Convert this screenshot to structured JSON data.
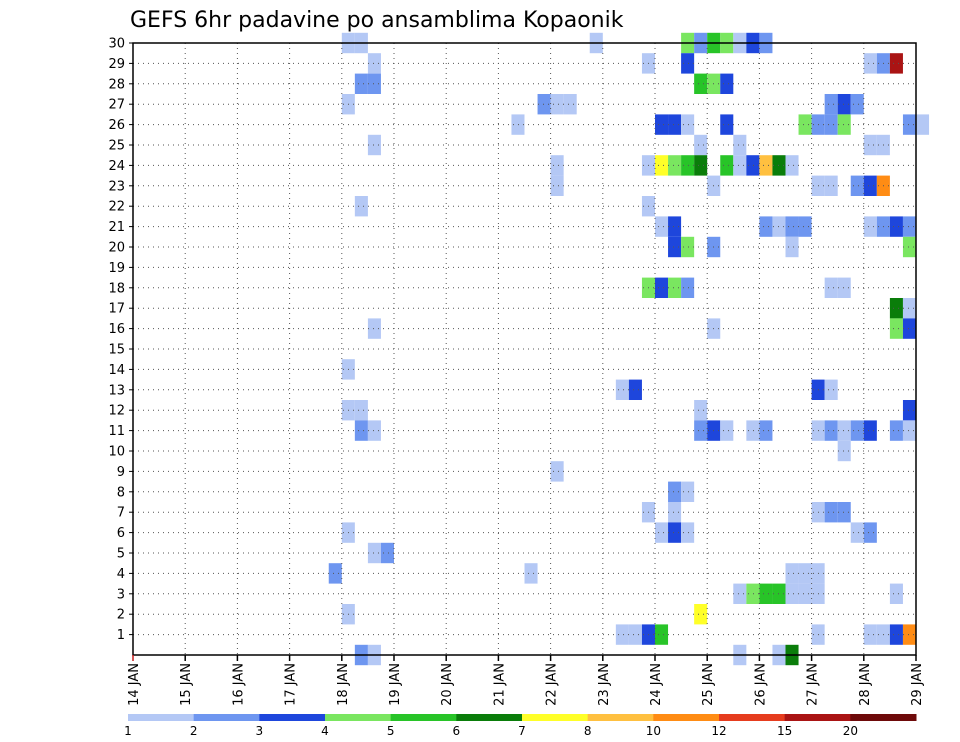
{
  "chart_data": {
    "type": "heatmap",
    "title": "GEFS 6hr padavine po ansamblima Kopaonik",
    "xlabel": "",
    "ylabel": "",
    "x_tick_labels": [
      "14 JAN",
      "15 JAN",
      "16 JAN",
      "17 JAN",
      "18 JAN",
      "19 JAN",
      "20 JAN",
      "21 JAN",
      "22 JAN",
      "23 JAN",
      "24 JAN",
      "25 JAN",
      "26 JAN",
      "27 JAN",
      "28 JAN",
      "29 JAN"
    ],
    "y_tick_labels": [
      "1",
      "2",
      "3",
      "4",
      "5",
      "6",
      "7",
      "8",
      "9",
      "10",
      "11",
      "12",
      "13",
      "14",
      "15",
      "16",
      "17",
      "18",
      "19",
      "20",
      "21",
      "22",
      "23",
      "24",
      "25",
      "26",
      "27",
      "28",
      "29",
      "30"
    ],
    "x_range_days": [
      14,
      29
    ],
    "time_step_hours": 6,
    "y_range": [
      0,
      30
    ],
    "grid": true,
    "colorbar": {
      "position": "bottom",
      "labels": [
        "1",
        "2",
        "3",
        "4",
        "5",
        "6",
        "7",
        "8",
        "10",
        "12",
        "15",
        "20"
      ],
      "colors": [
        "#b4c8f5",
        "#6e96f0",
        "#1e46dc",
        "#7ae660",
        "#28c428",
        "#0a7d0a",
        "#ffff28",
        "#ffc040",
        "#ff8c14",
        "#e63c1e",
        "#aa1414",
        "#6e0a0a"
      ]
    },
    "cells": [
      {
        "t": "18 JAN 00Z",
        "m": 30,
        "v": 1
      },
      {
        "t": "18 JAN 06Z",
        "m": 30,
        "v": 1
      },
      {
        "t": "22 JAN 18Z",
        "m": 30,
        "v": 1
      },
      {
        "t": "24 JAN 12Z",
        "m": 30,
        "v": 4
      },
      {
        "t": "24 JAN 18Z",
        "m": 30,
        "v": 2
      },
      {
        "t": "25 JAN 00Z",
        "m": 30,
        "v": 5
      },
      {
        "t": "25 JAN 06Z",
        "m": 30,
        "v": 4
      },
      {
        "t": "25 JAN 12Z",
        "m": 30,
        "v": 1
      },
      {
        "t": "25 JAN 18Z",
        "m": 30,
        "v": 3
      },
      {
        "t": "26 JAN 00Z",
        "m": 30,
        "v": 2
      },
      {
        "t": "18 JAN 12Z",
        "m": 29,
        "v": 1
      },
      {
        "t": "23 JAN 18Z",
        "m": 29,
        "v": 1
      },
      {
        "t": "24 JAN 12Z",
        "m": 29,
        "v": 3
      },
      {
        "t": "28 JAN 00Z",
        "m": 29,
        "v": 1
      },
      {
        "t": "28 JAN 06Z",
        "m": 29,
        "v": 2
      },
      {
        "t": "28 JAN 12Z",
        "m": 29,
        "v": 15
      },
      {
        "t": "18 JAN 06Z",
        "m": 28,
        "v": 2
      },
      {
        "t": "18 JAN 12Z",
        "m": 28,
        "v": 2
      },
      {
        "t": "24 JAN 18Z",
        "m": 28,
        "v": 5
      },
      {
        "t": "25 JAN 00Z",
        "m": 28,
        "v": 4
      },
      {
        "t": "25 JAN 06Z",
        "m": 28,
        "v": 3
      },
      {
        "t": "18 JAN 00Z",
        "m": 27,
        "v": 1
      },
      {
        "t": "21 JAN 18Z",
        "m": 27,
        "v": 2
      },
      {
        "t": "22 JAN 00Z",
        "m": 27,
        "v": 1
      },
      {
        "t": "22 JAN 06Z",
        "m": 27,
        "v": 1
      },
      {
        "t": "27 JAN 06Z",
        "m": 27,
        "v": 2
      },
      {
        "t": "27 JAN 12Z",
        "m": 27,
        "v": 3
      },
      {
        "t": "27 JAN 18Z",
        "m": 27,
        "v": 2
      },
      {
        "t": "21 JAN 06Z",
        "m": 26,
        "v": 1
      },
      {
        "t": "24 JAN 00Z",
        "m": 26,
        "v": 3
      },
      {
        "t": "24 JAN 06Z",
        "m": 26,
        "v": 3
      },
      {
        "t": "24 JAN 12Z",
        "m": 26,
        "v": 1
      },
      {
        "t": "25 JAN 06Z",
        "m": 26,
        "v": 3
      },
      {
        "t": "26 JAN 18Z",
        "m": 26,
        "v": 4
      },
      {
        "t": "27 JAN 00Z",
        "m": 26,
        "v": 2
      },
      {
        "t": "27 JAN 06Z",
        "m": 26,
        "v": 2
      },
      {
        "t": "27 JAN 12Z",
        "m": 26,
        "v": 4
      },
      {
        "t": "28 JAN 18Z",
        "m": 26,
        "v": 2
      },
      {
        "t": "29 JAN 00Z",
        "m": 26,
        "v": 1
      },
      {
        "t": "18 JAN 12Z",
        "m": 25,
        "v": 1
      },
      {
        "t": "24 JAN 18Z",
        "m": 25,
        "v": 1
      },
      {
        "t": "25 JAN 12Z",
        "m": 25,
        "v": 1
      },
      {
        "t": "28 JAN 00Z",
        "m": 25,
        "v": 1
      },
      {
        "t": "28 JAN 06Z",
        "m": 25,
        "v": 1
      },
      {
        "t": "22 JAN 00Z",
        "m": 24,
        "v": 1
      },
      {
        "t": "23 JAN 18Z",
        "m": 24,
        "v": 1
      },
      {
        "t": "24 JAN 00Z",
        "m": 24,
        "v": 7
      },
      {
        "t": "24 JAN 06Z",
        "m": 24,
        "v": 4
      },
      {
        "t": "24 JAN 12Z",
        "m": 24,
        "v": 5
      },
      {
        "t": "24 JAN 18Z",
        "m": 24,
        "v": 6
      },
      {
        "t": "25 JAN 06Z",
        "m": 24,
        "v": 5
      },
      {
        "t": "25 JAN 12Z",
        "m": 24,
        "v": 1
      },
      {
        "t": "25 JAN 18Z",
        "m": 24,
        "v": 3
      },
      {
        "t": "26 JAN 00Z",
        "m": 24,
        "v": 8
      },
      {
        "t": "26 JAN 06Z",
        "m": 24,
        "v": 6
      },
      {
        "t": "26 JAN 12Z",
        "m": 24,
        "v": 1
      },
      {
        "t": "22 JAN 00Z",
        "m": 23,
        "v": 1
      },
      {
        "t": "25 JAN 00Z",
        "m": 23,
        "v": 1
      },
      {
        "t": "27 JAN 00Z",
        "m": 23,
        "v": 1
      },
      {
        "t": "27 JAN 06Z",
        "m": 23,
        "v": 1
      },
      {
        "t": "27 JAN 18Z",
        "m": 23,
        "v": 2
      },
      {
        "t": "28 JAN 00Z",
        "m": 23,
        "v": 3
      },
      {
        "t": "28 JAN 06Z",
        "m": 23,
        "v": 10
      },
      {
        "t": "18 JAN 06Z",
        "m": 22,
        "v": 1
      },
      {
        "t": "23 JAN 18Z",
        "m": 22,
        "v": 1
      },
      {
        "t": "24 JAN 00Z",
        "m": 21,
        "v": 1
      },
      {
        "t": "24 JAN 06Z",
        "m": 21,
        "v": 3
      },
      {
        "t": "26 JAN 00Z",
        "m": 21,
        "v": 2
      },
      {
        "t": "26 JAN 06Z",
        "m": 21,
        "v": 1
      },
      {
        "t": "26 JAN 12Z",
        "m": 21,
        "v": 2
      },
      {
        "t": "26 JAN 18Z",
        "m": 21,
        "v": 2
      },
      {
        "t": "28 JAN 00Z",
        "m": 21,
        "v": 1
      },
      {
        "t": "28 JAN 06Z",
        "m": 21,
        "v": 2
      },
      {
        "t": "28 JAN 12Z",
        "m": 21,
        "v": 3
      },
      {
        "t": "28 JAN 18Z",
        "m": 21,
        "v": 2
      },
      {
        "t": "24 JAN 06Z",
        "m": 20,
        "v": 3
      },
      {
        "t": "24 JAN 12Z",
        "m": 20,
        "v": 4
      },
      {
        "t": "25 JAN 00Z",
        "m": 20,
        "v": 2
      },
      {
        "t": "26 JAN 12Z",
        "m": 20,
        "v": 1
      },
      {
        "t": "28 JAN 18Z",
        "m": 20,
        "v": 4
      },
      {
        "t": "23 JAN 18Z",
        "m": 18,
        "v": 4
      },
      {
        "t": "24 JAN 00Z",
        "m": 18,
        "v": 3
      },
      {
        "t": "24 JAN 06Z",
        "m": 18,
        "v": 4
      },
      {
        "t": "24 JAN 12Z",
        "m": 18,
        "v": 2
      },
      {
        "t": "27 JAN 06Z",
        "m": 18,
        "v": 1
      },
      {
        "t": "27 JAN 12Z",
        "m": 18,
        "v": 1
      },
      {
        "t": "28 JAN 12Z",
        "m": 17,
        "v": 6
      },
      {
        "t": "28 JAN 18Z",
        "m": 17,
        "v": 1
      },
      {
        "t": "18 JAN 12Z",
        "m": 16,
        "v": 1
      },
      {
        "t": "25 JAN 00Z",
        "m": 16,
        "v": 1
      },
      {
        "t": "28 JAN 12Z",
        "m": 16,
        "v": 4
      },
      {
        "t": "28 JAN 18Z",
        "m": 16,
        "v": 3
      },
      {
        "t": "18 JAN 00Z",
        "m": 14,
        "v": 1
      },
      {
        "t": "23 JAN 06Z",
        "m": 13,
        "v": 1
      },
      {
        "t": "23 JAN 12Z",
        "m": 13,
        "v": 3
      },
      {
        "t": "27 JAN 00Z",
        "m": 13,
        "v": 3
      },
      {
        "t": "27 JAN 06Z",
        "m": 13,
        "v": 1
      },
      {
        "t": "18 JAN 00Z",
        "m": 12,
        "v": 1
      },
      {
        "t": "18 JAN 06Z",
        "m": 12,
        "v": 1
      },
      {
        "t": "24 JAN 18Z",
        "m": 12,
        "v": 1
      },
      {
        "t": "28 JAN 18Z",
        "m": 12,
        "v": 3
      },
      {
        "t": "18 JAN 06Z",
        "m": 11,
        "v": 2
      },
      {
        "t": "18 JAN 12Z",
        "m": 11,
        "v": 1
      },
      {
        "t": "24 JAN 18Z",
        "m": 11,
        "v": 2
      },
      {
        "t": "25 JAN 00Z",
        "m": 11,
        "v": 3
      },
      {
        "t": "25 JAN 06Z",
        "m": 11,
        "v": 1
      },
      {
        "t": "25 JAN 18Z",
        "m": 11,
        "v": 1
      },
      {
        "t": "26 JAN 00Z",
        "m": 11,
        "v": 2
      },
      {
        "t": "27 JAN 00Z",
        "m": 11,
        "v": 1
      },
      {
        "t": "27 JAN 06Z",
        "m": 11,
        "v": 2
      },
      {
        "t": "27 JAN 12Z",
        "m": 11,
        "v": 1
      },
      {
        "t": "27 JAN 18Z",
        "m": 11,
        "v": 2
      },
      {
        "t": "28 JAN 00Z",
        "m": 11,
        "v": 3
      },
      {
        "t": "28 JAN 12Z",
        "m": 11,
        "v": 2
      },
      {
        "t": "28 JAN 18Z",
        "m": 11,
        "v": 1
      },
      {
        "t": "27 JAN 12Z",
        "m": 10,
        "v": 1
      },
      {
        "t": "22 JAN 00Z",
        "m": 9,
        "v": 1
      },
      {
        "t": "24 JAN 06Z",
        "m": 8,
        "v": 2
      },
      {
        "t": "24 JAN 12Z",
        "m": 8,
        "v": 1
      },
      {
        "t": "23 JAN 18Z",
        "m": 7,
        "v": 1
      },
      {
        "t": "24 JAN 06Z",
        "m": 7,
        "v": 1
      },
      {
        "t": "27 JAN 00Z",
        "m": 7,
        "v": 1
      },
      {
        "t": "27 JAN 06Z",
        "m": 7,
        "v": 2
      },
      {
        "t": "27 JAN 12Z",
        "m": 7,
        "v": 2
      },
      {
        "t": "18 JAN 00Z",
        "m": 6,
        "v": 1
      },
      {
        "t": "24 JAN 00Z",
        "m": 6,
        "v": 1
      },
      {
        "t": "24 JAN 06Z",
        "m": 6,
        "v": 3
      },
      {
        "t": "24 JAN 12Z",
        "m": 6,
        "v": 1
      },
      {
        "t": "27 JAN 18Z",
        "m": 6,
        "v": 1
      },
      {
        "t": "28 JAN 00Z",
        "m": 6,
        "v": 2
      },
      {
        "t": "18 JAN 12Z",
        "m": 5,
        "v": 1
      },
      {
        "t": "18 JAN 18Z",
        "m": 5,
        "v": 2
      },
      {
        "t": "17 JAN 18Z",
        "m": 4,
        "v": 2
      },
      {
        "t": "21 JAN 12Z",
        "m": 4,
        "v": 1
      },
      {
        "t": "26 JAN 12Z",
        "m": 4,
        "v": 1
      },
      {
        "t": "26 JAN 18Z",
        "m": 4,
        "v": 1
      },
      {
        "t": "27 JAN 00Z",
        "m": 4,
        "v": 1
      },
      {
        "t": "25 JAN 12Z",
        "m": 3,
        "v": 1
      },
      {
        "t": "25 JAN 18Z",
        "m": 3,
        "v": 4
      },
      {
        "t": "26 JAN 00Z",
        "m": 3,
        "v": 5
      },
      {
        "t": "26 JAN 06Z",
        "m": 3,
        "v": 5
      },
      {
        "t": "26 JAN 12Z",
        "m": 3,
        "v": 1
      },
      {
        "t": "26 JAN 18Z",
        "m": 3,
        "v": 1
      },
      {
        "t": "27 JAN 00Z",
        "m": 3,
        "v": 1
      },
      {
        "t": "28 JAN 12Z",
        "m": 3,
        "v": 1
      },
      {
        "t": "18 JAN 00Z",
        "m": 2,
        "v": 1
      },
      {
        "t": "24 JAN 18Z",
        "m": 2,
        "v": 7
      },
      {
        "t": "23 JAN 06Z",
        "m": 1,
        "v": 1
      },
      {
        "t": "23 JAN 12Z",
        "m": 1,
        "v": 1
      },
      {
        "t": "23 JAN 18Z",
        "m": 1,
        "v": 3
      },
      {
        "t": "24 JAN 00Z",
        "m": 1,
        "v": 5
      },
      {
        "t": "27 JAN 00Z",
        "m": 1,
        "v": 1
      },
      {
        "t": "28 JAN 00Z",
        "m": 1,
        "v": 1
      },
      {
        "t": "28 JAN 06Z",
        "m": 1,
        "v": 1
      },
      {
        "t": "28 JAN 12Z",
        "m": 1,
        "v": 3
      },
      {
        "t": "28 JAN 18Z",
        "m": 1,
        "v": 10
      },
      {
        "t": "18 JAN 06Z",
        "m": 0,
        "v": 2
      },
      {
        "t": "18 JAN 12Z",
        "m": 0,
        "v": 1
      },
      {
        "t": "25 JAN 12Z",
        "m": 0,
        "v": 1
      },
      {
        "t": "26 JAN 06Z",
        "m": 0,
        "v": 1
      },
      {
        "t": "26 JAN 12Z",
        "m": 0,
        "v": 6
      }
    ]
  }
}
